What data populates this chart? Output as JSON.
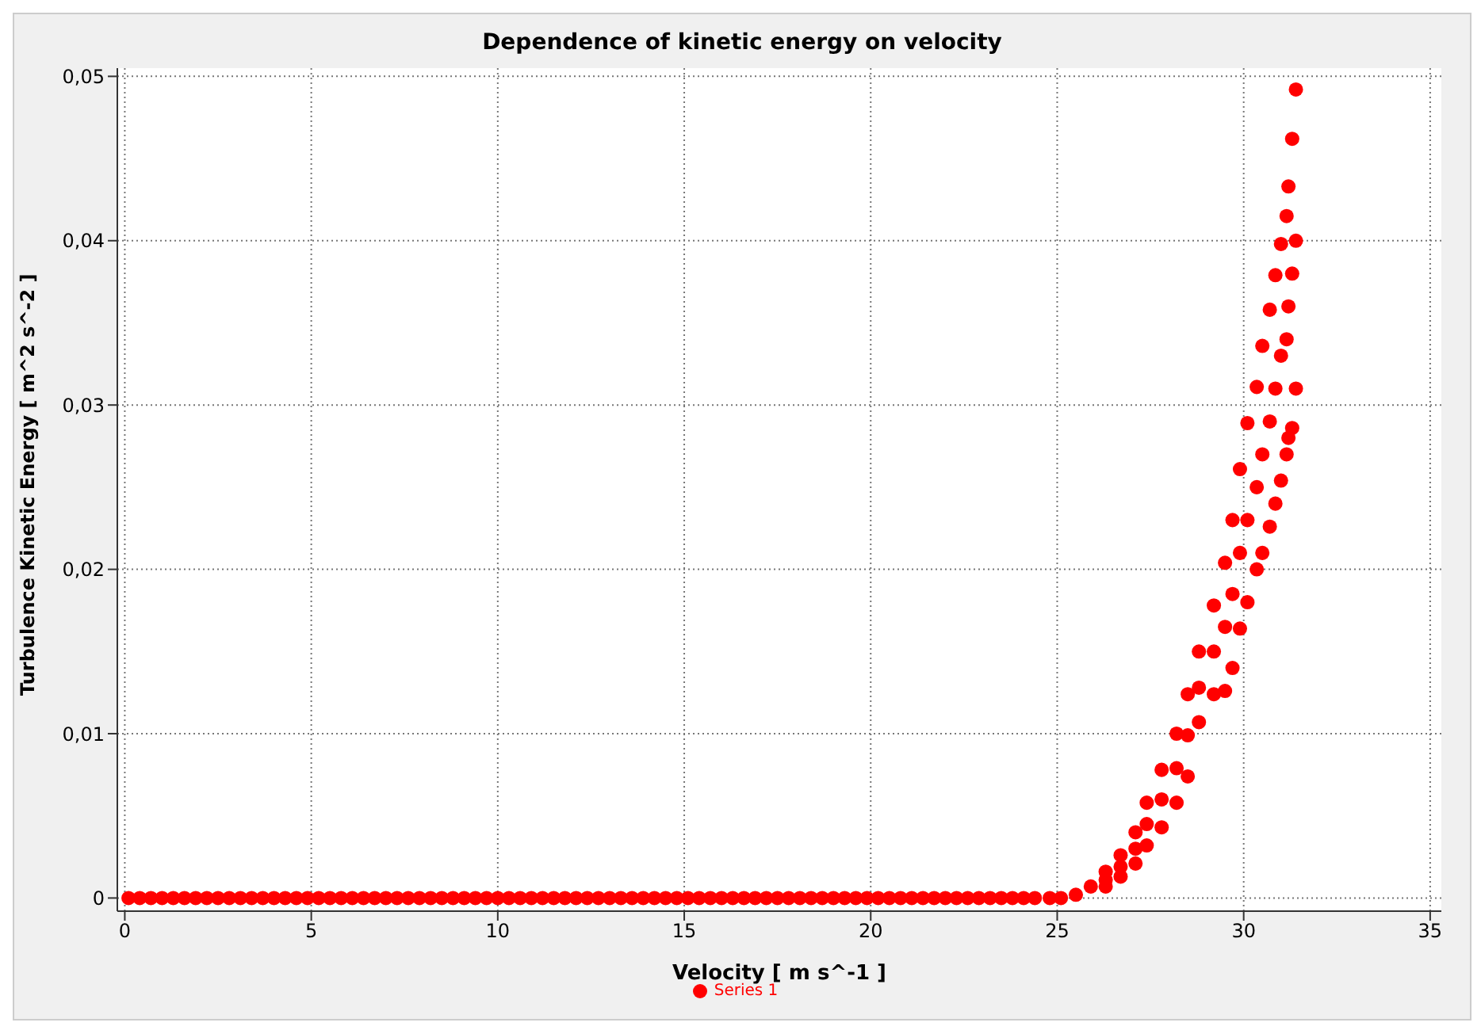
{
  "chart_data": {
    "type": "scatter",
    "title": "Dependence of kinetic energy on velocity",
    "xlabel": "Velocity [ m s^-1 ]",
    "ylabel": "Turbulence Kinetic Energy [ m^2 s^-2 ]",
    "xlim": [
      -0.2,
      35.3
    ],
    "ylim": [
      -0.0008,
      0.0505
    ],
    "xticks": [
      0,
      5,
      10,
      15,
      20,
      25,
      30,
      35
    ],
    "yticks": [
      0,
      {
        "value": 0.01,
        "label": "0,01"
      },
      {
        "value": 0.02,
        "label": "0,02"
      },
      {
        "value": 0.03,
        "label": "0,03"
      },
      {
        "value": 0.04,
        "label": "0,04"
      },
      {
        "value": 0.05,
        "label": "0,05"
      }
    ],
    "grid": true,
    "legend": "bottom",
    "marker": "circle",
    "series": [
      {
        "name": "Series 1",
        "color": "#ff0000",
        "x": [
          0.1,
          0.4,
          0.7,
          1.0,
          1.3,
          1.6,
          1.9,
          2.2,
          2.5,
          2.8,
          3.1,
          3.4,
          3.7,
          4.0,
          4.3,
          4.6,
          4.9,
          5.2,
          5.5,
          5.8,
          6.1,
          6.4,
          6.7,
          7.0,
          7.3,
          7.6,
          7.9,
          8.2,
          8.5,
          8.8,
          9.1,
          9.4,
          9.7,
          10.0,
          10.3,
          10.6,
          10.9,
          11.2,
          11.5,
          11.8,
          12.1,
          12.4,
          12.7,
          13.0,
          13.3,
          13.6,
          13.9,
          14.2,
          14.5,
          14.8,
          15.1,
          15.4,
          15.7,
          16.0,
          16.3,
          16.6,
          16.9,
          17.2,
          17.5,
          17.8,
          18.1,
          18.4,
          18.7,
          19.0,
          19.3,
          19.6,
          19.9,
          20.2,
          20.5,
          20.8,
          21.1,
          21.4,
          21.7,
          22.0,
          22.3,
          22.6,
          22.9,
          23.2,
          23.5,
          23.8,
          24.1,
          24.4,
          24.8,
          25.1,
          25.5,
          25.9,
          26.3,
          26.3,
          26.3,
          26.7,
          26.7,
          26.7,
          27.1,
          27.1,
          27.1,
          27.4,
          27.4,
          27.4,
          27.8,
          27.8,
          27.8,
          28.2,
          28.2,
          28.2,
          28.5,
          28.5,
          28.5,
          28.8,
          28.8,
          28.8,
          29.2,
          29.2,
          29.2,
          29.5,
          29.5,
          29.5,
          29.7,
          29.7,
          29.7,
          29.9,
          29.9,
          29.9,
          30.1,
          30.1,
          30.1,
          30.35,
          30.35,
          30.35,
          30.5,
          30.5,
          30.5,
          30.7,
          30.7,
          30.7,
          30.85,
          30.85,
          30.85,
          31.0,
          31.0,
          31.0,
          31.15,
          31.15,
          31.15,
          31.2,
          31.2,
          31.2,
          31.3,
          31.3,
          31.3,
          31.4,
          31.4,
          31.4
        ],
        "values": [
          0,
          0,
          0,
          0,
          0,
          0,
          0,
          0,
          0,
          0,
          0,
          0,
          0,
          0,
          0,
          0,
          0,
          0,
          0,
          0,
          0,
          0,
          0,
          0,
          0,
          0,
          0,
          0,
          0,
          0,
          0,
          0,
          0,
          0,
          0,
          0,
          0,
          0,
          0,
          0,
          0,
          0,
          0,
          0,
          0,
          0,
          0,
          0,
          0,
          0,
          0,
          0,
          0,
          0,
          0,
          0,
          0,
          0,
          0,
          0,
          0,
          0,
          0,
          0,
          0,
          0,
          0,
          0,
          0,
          0,
          0,
          0,
          0,
          0,
          0,
          0,
          0,
          0,
          0,
          0,
          0,
          0,
          0,
          0,
          0.0002,
          0.0007,
          0.0007,
          0.0011,
          0.0016,
          0.0013,
          0.0019,
          0.0026,
          0.0021,
          0.003,
          0.004,
          0.0032,
          0.0045,
          0.0058,
          0.0043,
          0.006,
          0.0078,
          0.0058,
          0.0079,
          0.01,
          0.0074,
          0.0099,
          0.0124,
          0.0107,
          0.0128,
          0.015,
          0.0124,
          0.015,
          0.0178,
          0.0126,
          0.0165,
          0.0204,
          0.014,
          0.0185,
          0.023,
          0.0164,
          0.021,
          0.0261,
          0.018,
          0.023,
          0.0289,
          0.02,
          0.025,
          0.0311,
          0.021,
          0.027,
          0.0336,
          0.0226,
          0.029,
          0.0358,
          0.024,
          0.031,
          0.0379,
          0.0254,
          0.033,
          0.0398,
          0.027,
          0.034,
          0.0415,
          0.028,
          0.036,
          0.0433,
          0.0286,
          0.038,
          0.0462,
          0.031,
          0.04,
          0.0492
        ]
      }
    ]
  }
}
